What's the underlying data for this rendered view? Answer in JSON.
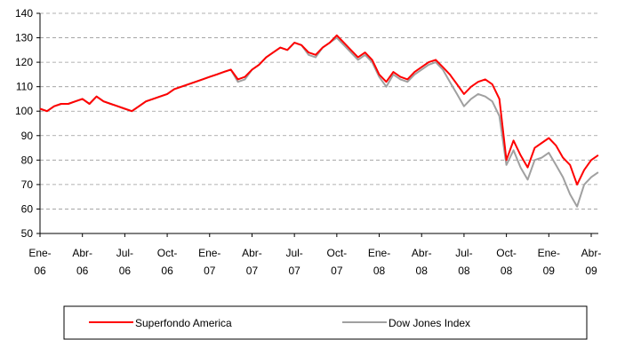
{
  "chart_data": {
    "type": "line",
    "categories": [
      "Ene-06",
      null,
      null,
      null,
      null,
      null,
      "Abr-06",
      null,
      null,
      null,
      null,
      null,
      "Jul-06",
      null,
      null,
      null,
      null,
      null,
      "Oct-06",
      null,
      null,
      null,
      null,
      null,
      "Ene-07",
      null,
      null,
      null,
      null,
      null,
      "Abr-07",
      null,
      null,
      null,
      null,
      null,
      "Jul-07",
      null,
      null,
      null,
      null,
      null,
      "Oct-07",
      null,
      null,
      null,
      null,
      null,
      "Ene-08",
      null,
      null,
      null,
      null,
      null,
      "Abr-08",
      null,
      null,
      null,
      null,
      null,
      "Jul-08",
      null,
      null,
      null,
      null,
      null,
      "Oct-08",
      null,
      null,
      null,
      null,
      null,
      "Ene-09",
      null,
      null,
      null,
      null,
      null,
      "Abr-09",
      null
    ],
    "series": [
      {
        "name": "Superfondo America",
        "color": "#ff0000",
        "values": [
          101,
          100,
          102,
          103,
          103,
          104,
          105,
          103,
          106,
          104,
          103,
          102,
          101,
          100,
          102,
          104,
          105,
          106,
          107,
          109,
          110,
          111,
          112,
          113,
          114,
          115,
          116,
          117,
          113,
          114,
          117,
          119,
          122,
          124,
          126,
          125,
          128,
          127,
          124,
          123,
          126,
          128,
          131,
          128,
          125,
          122,
          124,
          121,
          115,
          112,
          116,
          114,
          113,
          116,
          118,
          120,
          121,
          118,
          115,
          111,
          107,
          110,
          112,
          113,
          111,
          105,
          80,
          88,
          82,
          77,
          85,
          87,
          89,
          86,
          81,
          78,
          70,
          76,
          80,
          82
        ]
      },
      {
        "name": "Dow Jones Index",
        "color": "#a0a0a0",
        "values": [
          101,
          100,
          102,
          103,
          103,
          104,
          105,
          103,
          106,
          104,
          103,
          102,
          101,
          100,
          102,
          104,
          105,
          106,
          107,
          109,
          110,
          111,
          112,
          113,
          114,
          115,
          116,
          117,
          112,
          113,
          117,
          119,
          122,
          124,
          126,
          125,
          128,
          127,
          123,
          122,
          126,
          128,
          130,
          127,
          124,
          121,
          123,
          120,
          114,
          110,
          115,
          113,
          112,
          115,
          117,
          119,
          120,
          117,
          112,
          107,
          102,
          105,
          107,
          106,
          104,
          98,
          78,
          84,
          77,
          72,
          80,
          81,
          83,
          78,
          73,
          66,
          61,
          70,
          73,
          75
        ]
      }
    ],
    "ylim": [
      50,
      140
    ],
    "yticks": [
      50,
      60,
      70,
      80,
      90,
      100,
      110,
      120,
      130,
      140
    ],
    "grid": true,
    "legend": "bottom"
  }
}
